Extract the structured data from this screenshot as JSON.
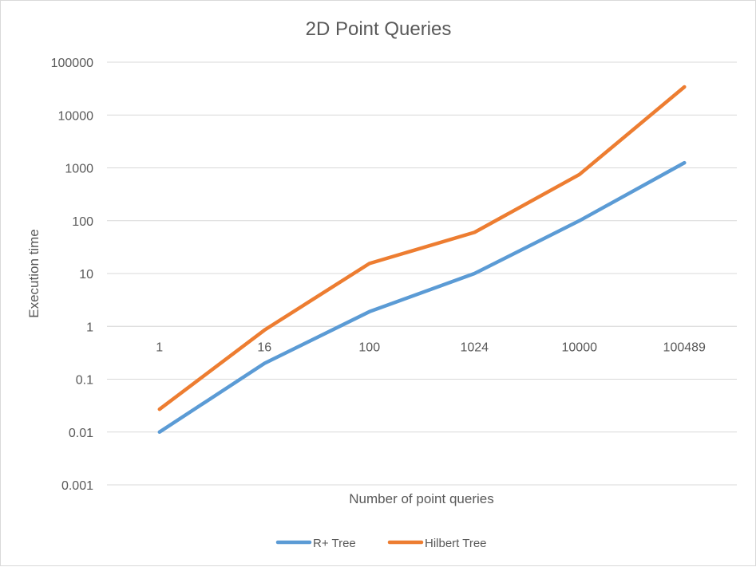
{
  "chart_data": {
    "type": "line",
    "title": "2D Point Queries",
    "xlabel": "Number of point queries",
    "ylabel": "Execution time",
    "yscale": "log",
    "ylim": [
      0.001,
      100000
    ],
    "y_ticks": [
      "0.001",
      "0.01",
      "0.1",
      "1",
      "10",
      "100",
      "1000",
      "10000",
      "100000"
    ],
    "x_axis_crosses_y_at": 1,
    "categories": [
      "1",
      "16",
      "100",
      "1024",
      "10000",
      "100489"
    ],
    "series": [
      {
        "name": "R+ Tree",
        "color": "#5b9bd5",
        "values": [
          0.01,
          0.2,
          1.9,
          10,
          100,
          1250
        ]
      },
      {
        "name": "Hilbert Tree",
        "color": "#ed7d31",
        "values": [
          0.027,
          0.85,
          15.5,
          60,
          750,
          34000
        ]
      }
    ],
    "grid": true,
    "legend_position": "bottom"
  }
}
